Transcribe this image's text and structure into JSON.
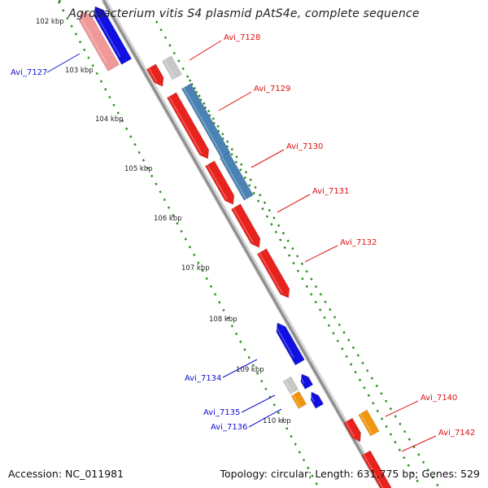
{
  "title": "Agrobacterium vitis S4 plasmid pAtS4e, complete sequence",
  "footer": {
    "accession": "Accession: NC_011981",
    "summary": "Topology: circular; Length: 631,775 bp; Genes: 529"
  },
  "colors": {
    "backbone": "#8e8e8e",
    "ticks": "#2b8a1e",
    "cds_forward": "#e8221c",
    "cds_reverse": "#1010e0",
    "rna": "#f0960e",
    "other": "#c8c8c8",
    "blast": "#4a82b4",
    "pseudo": "#f19999",
    "label_forward": "#e01010",
    "label_reverse": "#1010d0"
  },
  "kbp_labels": [
    "102 kbp",
    "103 kbp",
    "104 kbp",
    "105 kbp",
    "106 kbp",
    "107 kbp",
    "108 kbp",
    "109 kbp",
    "110 kbp"
  ],
  "gene_labels": [
    {
      "name": "Avi_7127",
      "strand": "reverse"
    },
    {
      "name": "Avi_7128",
      "strand": "forward"
    },
    {
      "name": "Avi_7129",
      "strand": "forward"
    },
    {
      "name": "Avi_7130",
      "strand": "forward"
    },
    {
      "name": "Avi_7131",
      "strand": "forward"
    },
    {
      "name": "Avi_7132",
      "strand": "forward"
    },
    {
      "name": "Avi_7134",
      "strand": "reverse"
    },
    {
      "name": "Avi_7135",
      "strand": "reverse"
    },
    {
      "name": "Avi_7136",
      "strand": "reverse"
    },
    {
      "name": "Avi_7140",
      "strand": "forward"
    },
    {
      "name": "Avi_7142",
      "strand": "forward"
    }
  ]
}
